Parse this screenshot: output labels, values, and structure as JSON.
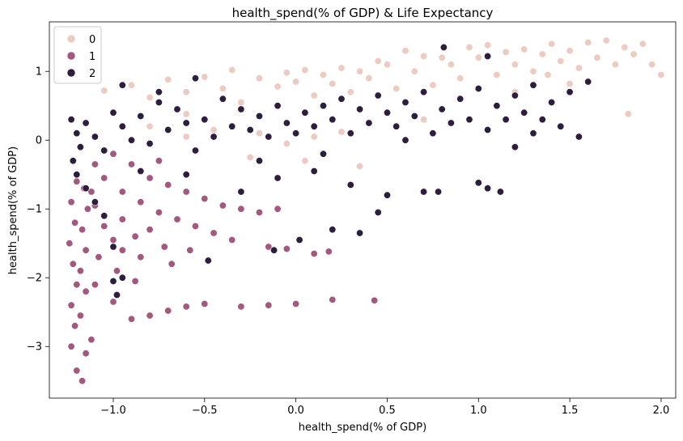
{
  "chart_data": {
    "type": "scatter",
    "title": "health_spend(% of GDP) & Life Expectancy",
    "xlabel": "health_spend(% of GDP)",
    "ylabel": "health_spend(% of GDP)",
    "xlim": [
      -1.35,
      2.08
    ],
    "ylim": [
      -3.75,
      1.72
    ],
    "xticks": [
      -1.0,
      -0.5,
      0.0,
      0.5,
      1.0,
      1.5,
      2.0
    ],
    "xtick_labels": [
      "−1.0",
      "−0.5",
      "0.0",
      "0.5",
      "1.0",
      "1.5",
      "2.0"
    ],
    "yticks": [
      1,
      0,
      -1,
      -2,
      -3
    ],
    "ytick_labels": [
      "1",
      "0",
      "−1",
      "−2",
      "−3"
    ],
    "grid": false,
    "legend_position": "top-left",
    "series": [
      {
        "name": "0",
        "color": "#ebcbc2",
        "points": [
          [
            -1.05,
            0.72
          ],
          [
            -0.9,
            0.8
          ],
          [
            -0.8,
            0.62
          ],
          [
            -0.7,
            0.88
          ],
          [
            -0.6,
            0.7
          ],
          [
            -0.5,
            0.92
          ],
          [
            -0.4,
            0.75
          ],
          [
            -0.35,
            1.02
          ],
          [
            -0.3,
            0.55
          ],
          [
            -0.2,
            0.9
          ],
          [
            -0.1,
            0.78
          ],
          [
            -0.05,
            0.98
          ],
          [
            0.0,
            0.85
          ],
          [
            0.05,
            1.02
          ],
          [
            0.1,
            0.65
          ],
          [
            0.15,
            0.95
          ],
          [
            0.2,
            0.82
          ],
          [
            0.25,
            1.05
          ],
          [
            0.3,
            0.7
          ],
          [
            0.35,
            1.0
          ],
          [
            0.4,
            0.9
          ],
          [
            0.45,
            1.15
          ],
          [
            0.5,
            1.1
          ],
          [
            0.55,
            0.75
          ],
          [
            0.6,
            1.3
          ],
          [
            0.65,
            1.0
          ],
          [
            0.7,
            1.22
          ],
          [
            0.75,
            0.8
          ],
          [
            0.8,
            1.2
          ],
          [
            0.85,
            1.1
          ],
          [
            0.9,
            0.9
          ],
          [
            0.95,
            1.35
          ],
          [
            1.0,
            1.2
          ],
          [
            1.05,
            1.38
          ],
          [
            1.1,
            0.95
          ],
          [
            1.15,
            1.28
          ],
          [
            1.2,
            1.1
          ],
          [
            1.25,
            1.32
          ],
          [
            1.3,
            1.0
          ],
          [
            1.35,
            1.25
          ],
          [
            1.4,
            1.4
          ],
          [
            1.45,
            1.15
          ],
          [
            1.5,
            1.3
          ],
          [
            1.55,
            1.05
          ],
          [
            1.6,
            1.42
          ],
          [
            1.65,
            1.2
          ],
          [
            1.7,
            1.45
          ],
          [
            1.75,
            1.1
          ],
          [
            1.8,
            1.35
          ],
          [
            1.85,
            1.25
          ],
          [
            1.9,
            1.4
          ],
          [
            1.95,
            1.1
          ],
          [
            2.0,
            0.95
          ],
          [
            1.82,
            0.38
          ],
          [
            1.5,
            0.82
          ],
          [
            1.2,
            0.7
          ],
          [
            0.9,
            0.6
          ],
          [
            0.7,
            0.3
          ],
          [
            0.55,
            0.2
          ],
          [
            0.4,
            0.25
          ],
          [
            0.25,
            0.12
          ],
          [
            0.1,
            0.05
          ],
          [
            -0.05,
            -0.05
          ],
          [
            -0.2,
            0.1
          ],
          [
            -0.45,
            0.15
          ],
          [
            -0.6,
            0.05
          ],
          [
            -0.8,
            0.2
          ],
          [
            -0.25,
            -0.25
          ],
          [
            0.35,
            -0.38
          ],
          [
            0.05,
            -0.3
          ],
          [
            -0.6,
            0.38
          ],
          [
            1.38,
            0.95
          ]
        ]
      },
      {
        "name": "1",
        "color": "#a3597e",
        "points": [
          [
            -1.22,
            -0.3
          ],
          [
            -1.2,
            -0.6
          ],
          [
            -1.23,
            -0.9
          ],
          [
            -1.21,
            -1.2
          ],
          [
            -1.24,
            -1.5
          ],
          [
            -1.22,
            -1.8
          ],
          [
            -1.2,
            -2.1
          ],
          [
            -1.23,
            -2.4
          ],
          [
            -1.21,
            -2.7
          ],
          [
            -1.23,
            -3.0
          ],
          [
            -1.2,
            -3.35
          ],
          [
            -1.17,
            -3.5
          ],
          [
            -1.15,
            -3.1
          ],
          [
            -1.18,
            -2.55
          ],
          [
            -1.15,
            -2.2
          ],
          [
            -1.18,
            -1.9
          ],
          [
            -1.15,
            -1.6
          ],
          [
            -1.17,
            -1.3
          ],
          [
            -1.14,
            -1.0
          ],
          [
            -1.16,
            -0.7
          ],
          [
            -1.1,
            -0.95
          ],
          [
            -1.05,
            -1.25
          ],
          [
            -1.0,
            -1.45
          ],
          [
            -0.95,
            -1.6
          ],
          [
            -1.1,
            -2.1
          ],
          [
            -1.0,
            -2.35
          ],
          [
            -0.9,
            -2.6
          ],
          [
            -0.8,
            -2.55
          ],
          [
            -0.7,
            -2.48
          ],
          [
            -0.6,
            -2.42
          ],
          [
            -0.5,
            -2.38
          ],
          [
            -0.3,
            -2.42
          ],
          [
            -0.15,
            -2.4
          ],
          [
            0.0,
            -2.38
          ],
          [
            0.2,
            -2.32
          ],
          [
            0.43,
            -2.33
          ],
          [
            -1.05,
            -0.55
          ],
          [
            -0.95,
            -0.75
          ],
          [
            -0.85,
            -0.9
          ],
          [
            -0.75,
            -1.05
          ],
          [
            -0.65,
            -1.15
          ],
          [
            -0.55,
            -1.25
          ],
          [
            -0.45,
            -1.35
          ],
          [
            -0.35,
            -1.45
          ],
          [
            -0.15,
            -1.55
          ],
          [
            -0.05,
            -1.58
          ],
          [
            0.1,
            -1.65
          ],
          [
            0.18,
            -1.62
          ],
          [
            -0.8,
            -0.55
          ],
          [
            -0.7,
            -0.65
          ],
          [
            -0.6,
            -0.75
          ],
          [
            -0.5,
            -0.85
          ],
          [
            -0.4,
            -0.95
          ],
          [
            -0.3,
            -1.0
          ],
          [
            -0.2,
            -1.05
          ],
          [
            -0.1,
            -1.0
          ],
          [
            -1.1,
            -0.35
          ],
          [
            -1.0,
            -0.2
          ],
          [
            -0.9,
            -0.35
          ],
          [
            -0.75,
            -0.3
          ],
          [
            -1.08,
            -1.7
          ],
          [
            -0.98,
            -1.9
          ],
          [
            -0.88,
            -2.05
          ],
          [
            -1.12,
            -2.9
          ],
          [
            -1.12,
            -0.75
          ],
          [
            -0.95,
            -1.15
          ],
          [
            -0.88,
            -1.4
          ],
          [
            -0.8,
            -1.3
          ],
          [
            -0.72,
            -1.55
          ],
          [
            -0.58,
            -1.6
          ],
          [
            -0.68,
            -1.8
          ],
          [
            -0.85,
            -1.7
          ]
        ]
      },
      {
        "name": "2",
        "color": "#2d1e3e",
        "points": [
          [
            -1.23,
            0.3
          ],
          [
            -1.2,
            0.1
          ],
          [
            -1.18,
            -0.1
          ],
          [
            -1.22,
            -0.3
          ],
          [
            -1.15,
            0.25
          ],
          [
            -1.1,
            0.05
          ],
          [
            -1.05,
            -0.15
          ],
          [
            -1.0,
            0.4
          ],
          [
            -0.95,
            0.2
          ],
          [
            -0.9,
            0.0
          ],
          [
            -0.85,
            0.35
          ],
          [
            -0.8,
            -0.05
          ],
          [
            -0.75,
            0.55
          ],
          [
            -0.7,
            0.15
          ],
          [
            -0.65,
            0.45
          ],
          [
            -0.6,
            0.25
          ],
          [
            -0.55,
            0.9
          ],
          [
            -0.5,
            0.3
          ],
          [
            -0.45,
            0.05
          ],
          [
            -0.4,
            0.6
          ],
          [
            -0.35,
            0.2
          ],
          [
            -0.3,
            0.45
          ],
          [
            -0.25,
            0.15
          ],
          [
            -0.2,
            0.35
          ],
          [
            -0.15,
            0.05
          ],
          [
            -0.1,
            0.5
          ],
          [
            -0.05,
            0.25
          ],
          [
            0.0,
            0.1
          ],
          [
            0.05,
            0.4
          ],
          [
            0.1,
            0.2
          ],
          [
            0.15,
            0.5
          ],
          [
            0.2,
            0.3
          ],
          [
            0.25,
            0.6
          ],
          [
            0.3,
            0.1
          ],
          [
            0.35,
            0.45
          ],
          [
            0.4,
            0.25
          ],
          [
            0.45,
            0.65
          ],
          [
            0.5,
            0.4
          ],
          [
            0.55,
            0.2
          ],
          [
            0.6,
            0.55
          ],
          [
            0.65,
            0.35
          ],
          [
            0.7,
            0.7
          ],
          [
            0.75,
            0.1
          ],
          [
            0.8,
            0.45
          ],
          [
            0.85,
            0.25
          ],
          [
            0.9,
            0.6
          ],
          [
            0.95,
            0.3
          ],
          [
            1.0,
            0.75
          ],
          [
            1.05,
            0.15
          ],
          [
            1.1,
            0.5
          ],
          [
            1.15,
            0.3
          ],
          [
            1.2,
            0.65
          ],
          [
            1.25,
            0.4
          ],
          [
            1.3,
            0.8
          ],
          [
            1.35,
            0.3
          ],
          [
            1.4,
            0.55
          ],
          [
            1.45,
            0.2
          ],
          [
            1.5,
            0.7
          ],
          [
            1.55,
            0.05
          ],
          [
            1.6,
            0.85
          ],
          [
            0.81,
            1.35
          ],
          [
            1.05,
            1.22
          ],
          [
            -0.95,
            0.8
          ],
          [
            -0.75,
            0.7
          ],
          [
            -1.2,
            -0.5
          ],
          [
            -1.15,
            -0.7
          ],
          [
            -1.1,
            -0.9
          ],
          [
            -1.05,
            -1.1
          ],
          [
            -1.0,
            -1.55
          ],
          [
            -1.0,
            -2.05
          ],
          [
            -0.98,
            -2.25
          ],
          [
            -0.95,
            -2.0
          ],
          [
            -0.48,
            -1.75
          ],
          [
            -0.3,
            -0.75
          ],
          [
            -0.1,
            -0.55
          ],
          [
            0.1,
            -0.45
          ],
          [
            0.3,
            -0.65
          ],
          [
            0.5,
            -0.8
          ],
          [
            0.7,
            -0.75
          ],
          [
            0.78,
            -0.75
          ],
          [
            1.0,
            -0.62
          ],
          [
            1.05,
            -0.7
          ],
          [
            1.12,
            -0.75
          ],
          [
            0.2,
            -1.3
          ],
          [
            0.35,
            -1.35
          ],
          [
            0.02,
            -1.45
          ],
          [
            -0.12,
            -1.6
          ],
          [
            0.45,
            -1.05
          ],
          [
            -0.6,
            -0.5
          ],
          [
            -0.2,
            -0.3
          ],
          [
            0.15,
            -0.2
          ],
          [
            -0.85,
            -0.45
          ],
          [
            -0.55,
            -0.15
          ],
          [
            0.6,
            0.0
          ],
          [
            1.2,
            -0.1
          ],
          [
            1.3,
            0.1
          ]
        ]
      }
    ]
  }
}
